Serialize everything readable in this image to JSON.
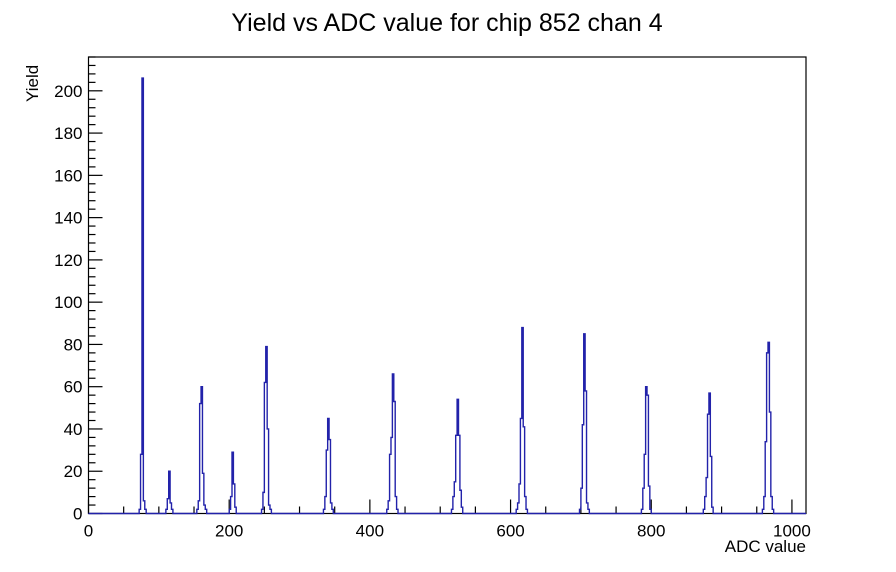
{
  "page": {
    "background_color": "#ffffff"
  },
  "chart_data": {
    "type": "bar",
    "subtype": "histogram-step-outline",
    "title": "Yield vs ADC value for chip 852 chan 4",
    "xlabel": "ADC value",
    "ylabel": "Yield",
    "xlim": [
      0,
      1020
    ],
    "ylim": [
      0,
      216
    ],
    "x_major_ticks": [
      0,
      200,
      400,
      600,
      800,
      1000
    ],
    "x_major_tick_labels": [
      "0",
      "200",
      "400",
      "600",
      "800",
      "1000"
    ],
    "x_minor_tick_step": 50,
    "y_major_tick_step": 20,
    "y_major_tick_labels": [
      "0",
      "20",
      "40",
      "60",
      "80",
      "100",
      "120",
      "140",
      "160",
      "180",
      "200"
    ],
    "y_minor_tick_step": 4,
    "grid": false,
    "legend": null,
    "line_color": "#2222aa",
    "frame_color": "#000000",
    "bin_width": 2,
    "baseline": 0,
    "peaks": [
      {
        "adc_start": 72,
        "heights": [
          2,
          28,
          206,
          6,
          2
        ]
      },
      {
        "adc_start": 110,
        "heights": [
          2,
          7,
          20,
          5,
          2
        ]
      },
      {
        "adc_start": 154,
        "heights": [
          2,
          6,
          52,
          60,
          19,
          4,
          2
        ]
      },
      {
        "adc_start": 200,
        "heights": [
          2,
          8,
          29,
          14,
          3
        ]
      },
      {
        "adc_start": 246,
        "heights": [
          2,
          10,
          62,
          79,
          40,
          4,
          2
        ]
      },
      {
        "adc_start": 334,
        "heights": [
          2,
          8,
          30,
          45,
          35,
          5,
          2
        ]
      },
      {
        "adc_start": 424,
        "heights": [
          2,
          6,
          28,
          36,
          66,
          53,
          8,
          2
        ]
      },
      {
        "adc_start": 516,
        "heights": [
          2,
          8,
          15,
          37,
          54,
          37,
          11,
          3
        ]
      },
      {
        "adc_start": 608,
        "heights": [
          2,
          5,
          14,
          45,
          88,
          41,
          8,
          2
        ]
      },
      {
        "adc_start": 698,
        "heights": [
          2,
          12,
          42,
          85,
          58,
          5,
          2
        ]
      },
      {
        "adc_start": 786,
        "heights": [
          2,
          12,
          28,
          60,
          56,
          13,
          2
        ]
      },
      {
        "adc_start": 874,
        "heights": [
          2,
          8,
          17,
          47,
          57,
          27,
          3
        ]
      },
      {
        "adc_start": 958,
        "heights": [
          2,
          8,
          34,
          76,
          81,
          48,
          8,
          2
        ]
      }
    ],
    "peak_summary": [
      {
        "adc": 76,
        "max_yield": 206
      },
      {
        "adc": 114,
        "max_yield": 20
      },
      {
        "adc": 160,
        "max_yield": 60
      },
      {
        "adc": 204,
        "max_yield": 29
      },
      {
        "adc": 252,
        "max_yield": 79
      },
      {
        "adc": 340,
        "max_yield": 45
      },
      {
        "adc": 432,
        "max_yield": 66
      },
      {
        "adc": 524,
        "max_yield": 54
      },
      {
        "adc": 616,
        "max_yield": 88
      },
      {
        "adc": 704,
        "max_yield": 85
      },
      {
        "adc": 792,
        "max_yield": 60
      },
      {
        "adc": 882,
        "max_yield": 57
      },
      {
        "adc": 966,
        "max_yield": 81
      }
    ]
  }
}
